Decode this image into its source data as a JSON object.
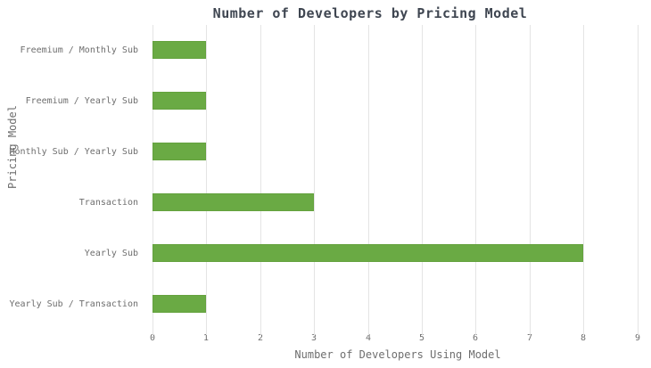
{
  "chart_data": {
    "type": "bar",
    "orientation": "horizontal",
    "title": "Number of Developers by Pricing Model",
    "xlabel": "Number of Developers Using Model",
    "ylabel": "Pricing Model",
    "categories": [
      "Freemium / Monthly Sub",
      "Freemium / Yearly Sub",
      "Monthly Sub / Yearly Sub",
      "Transaction",
      "Yearly Sub",
      "Yearly Sub / Transaction"
    ],
    "values": [
      1,
      1,
      1,
      3,
      8,
      1
    ],
    "xlim": [
      0,
      9
    ],
    "xticks": [
      "0",
      "1",
      "2",
      "3",
      "4",
      "5",
      "6",
      "7",
      "8",
      "9"
    ],
    "grid": "vertical",
    "legend": "none",
    "colors": {
      "bar_fill": "#6aaa44",
      "bar_border": "#64a23e",
      "gridline": "#e4e4e4",
      "title_text": "#3f4651",
      "axis_text": "#6e6e6e"
    }
  }
}
